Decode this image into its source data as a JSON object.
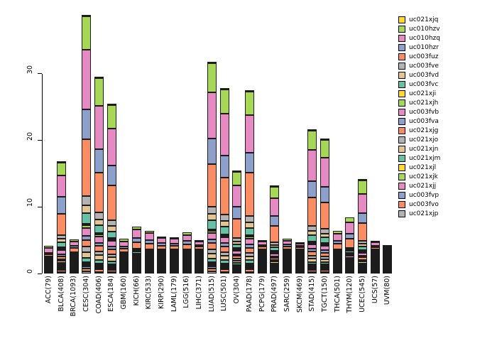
{
  "figure": {
    "background": "#ffffff"
  },
  "chart_data": {
    "type": "bar",
    "stacked": true,
    "title": "",
    "xlabel": "",
    "ylabel": "",
    "ylim": [
      0,
      40
    ],
    "yticks": [
      0,
      10,
      20,
      30
    ],
    "grid": false,
    "legend_position": "top-right",
    "categories": [
      "ACC(79)",
      "BLCA(408)",
      "BRCA(1093)",
      "CESC(304)",
      "COAD(406)",
      "ESCA(184)",
      "GBM(160)",
      "KICH(66)",
      "KIRC(533)",
      "KIRP(290)",
      "LAML(179)",
      "LGG(516)",
      "LIHC(371)",
      "LUAD(515)",
      "LUSC(501)",
      "OV(304)",
      "PAAD(178)",
      "PCPG(179)",
      "PRAD(497)",
      "SARC(259)",
      "SKCM(469)",
      "STAD(415)",
      "TGCT(150)",
      "THCA(501)",
      "THYM(120)",
      "UCEC(545)",
      "UCS(57)",
      "UVM(80)"
    ],
    "series": [
      {
        "name": "uc021xjq",
        "color": "#FFD92F"
      },
      {
        "name": "uc010hzv",
        "color": "#A6D854"
      },
      {
        "name": "uc010hzq",
        "color": "#E78AC3"
      },
      {
        "name": "uc010hzr",
        "color": "#8DA0CB"
      },
      {
        "name": "uc003fuz",
        "color": "#FC8D62"
      },
      {
        "name": "uc003fve",
        "color": "#B3B3B3"
      },
      {
        "name": "uc003fvd",
        "color": "#E5C494"
      },
      {
        "name": "uc003fvc",
        "color": "#66C2A5"
      },
      {
        "name": "uc021xji",
        "color": "#FFD92F"
      },
      {
        "name": "uc021xjh",
        "color": "#A6D854"
      },
      {
        "name": "uc003fvb",
        "color": "#E78AC3"
      },
      {
        "name": "uc003fva",
        "color": "#8DA0CB"
      },
      {
        "name": "uc021xjg",
        "color": "#FC8D62"
      },
      {
        "name": "uc021xjo",
        "color": "#B3B3B3"
      },
      {
        "name": "uc021xjn",
        "color": "#E5C494"
      },
      {
        "name": "uc021xjm",
        "color": "#66C2A5"
      },
      {
        "name": "uc021xjl",
        "color": "#FFD92F"
      },
      {
        "name": "uc021xjk",
        "color": "#A6D854"
      },
      {
        "name": "uc021xjj",
        "color": "#E78AC3"
      },
      {
        "name": "uc003fvp",
        "color": "#8DA0CB"
      },
      {
        "name": "uc003fvo",
        "color": "#FC8D62"
      },
      {
        "name": "uc021xjp",
        "color": "#B3B3B3"
      }
    ],
    "stack_bottom_to_top": [
      "uc021xjp",
      "uc003fvo",
      "uc003fvp",
      "uc021xjj",
      "uc021xjk",
      "uc021xjl",
      "uc021xjm",
      "uc021xjn",
      "uc021xjo",
      "uc021xjg",
      "uc003fva",
      "uc003fvb",
      "uc021xjh",
      "uc021xji",
      "uc003fvc",
      "uc003fvd",
      "uc003fve",
      "uc003fuz",
      "uc010hzr",
      "uc010hzq",
      "uc010hzv",
      "uc021xjq"
    ],
    "segments_bottom_to_top": [
      [
        0.05,
        0.1,
        0.05,
        0,
        0,
        0,
        0.05,
        0.05,
        0.05,
        0.1,
        0.05,
        0.1,
        0,
        0,
        0.1,
        0.05,
        0.05,
        0.35,
        0.15,
        0.75,
        0.25,
        0
      ],
      [
        0.2,
        0.3,
        0.2,
        0.1,
        0.1,
        0.05,
        0.2,
        0.3,
        0.3,
        0.4,
        0.3,
        0.6,
        0.2,
        0.05,
        0.8,
        0.5,
        0.6,
        3.2,
        2.5,
        3.2,
        1.9,
        0.1
      ],
      [
        0.05,
        0.1,
        0.05,
        0.05,
        0.05,
        0,
        0.05,
        0.1,
        0.1,
        0.15,
        0.1,
        0.15,
        0.05,
        0,
        0.15,
        0.1,
        0.1,
        0.6,
        0.35,
        0.7,
        0.3,
        0
      ],
      [
        0.3,
        0.5,
        0.3,
        0.2,
        0.2,
        0.1,
        0.6,
        0.9,
        0.8,
        1.0,
        0.6,
        1.2,
        0.4,
        0.1,
        1.6,
        1.2,
        1.4,
        8.5,
        4.5,
        9.0,
        5.0,
        0.2
      ],
      [
        0.25,
        0.4,
        0.25,
        0.15,
        0.15,
        0.1,
        0.5,
        0.7,
        0.6,
        0.8,
        0.5,
        0.9,
        0.3,
        0.1,
        1.2,
        0.9,
        1.0,
        6.0,
        3.5,
        6.5,
        4.2,
        0.2
      ],
      [
        0.2,
        0.35,
        0.2,
        0.15,
        0.15,
        0.1,
        0.4,
        0.6,
        0.5,
        0.7,
        0.45,
        0.8,
        0.25,
        0.1,
        1.0,
        0.8,
        0.9,
        5.2,
        3.0,
        5.5,
        3.6,
        0.2
      ],
      [
        0.05,
        0.1,
        0.05,
        0.05,
        0.05,
        0,
        0.1,
        0.1,
        0.1,
        0.15,
        0.1,
        0.15,
        0.05,
        0,
        0.15,
        0.1,
        0.15,
        0.55,
        0.35,
        0.75,
        0.35,
        0
      ],
      [
        0.1,
        0.15,
        0.1,
        0.05,
        0.05,
        0.05,
        0.1,
        0.15,
        0.15,
        0.2,
        0.15,
        0.25,
        0.1,
        0.05,
        0.25,
        0.15,
        0.2,
        1.0,
        0.6,
        1.3,
        0.45,
        0
      ],
      [
        0.1,
        0.12,
        0.08,
        0.05,
        0.05,
        0.05,
        0.1,
        0.12,
        0.12,
        0.18,
        0.12,
        0.2,
        0.08,
        0.05,
        0.2,
        0.12,
        0.15,
        0.85,
        0.5,
        1.1,
        0.36,
        0
      ],
      [
        0.07,
        0.08,
        0.05,
        0.03,
        0.03,
        0.03,
        0.07,
        0.08,
        0.08,
        0.12,
        0.08,
        0.14,
        0.05,
        0.03,
        0.14,
        0.08,
        0.1,
        0.58,
        0.34,
        0.75,
        0.27,
        0
      ],
      [
        0.06,
        0.08,
        0.05,
        0.03,
        0.03,
        0.02,
        0.06,
        0.08,
        0.08,
        0.1,
        0.08,
        0.12,
        0.05,
        0.02,
        0.12,
        0.08,
        0.1,
        0.55,
        0.32,
        0.7,
        0.27,
        0
      ],
      [
        0.08,
        0.1,
        0.07,
        0.05,
        0.05,
        0.03,
        0.08,
        0.1,
        0.1,
        0.15,
        0.1,
        0.18,
        0.07,
        0.03,
        0.18,
        0.1,
        0.13,
        0.78,
        0.45,
        0.95,
        0.42,
        0
      ],
      [
        0.05,
        0.08,
        0.05,
        0.02,
        0.02,
        0.02,
        0.05,
        0.06,
        0.06,
        0.1,
        0.06,
        0.1,
        0.04,
        0.02,
        0.1,
        0.06,
        0.08,
        0.42,
        0.25,
        0.55,
        0.21,
        0
      ],
      [
        0.3,
        0.45,
        0.3,
        0.2,
        0.2,
        0.1,
        0.55,
        0.75,
        0.65,
        0.9,
        0.55,
        1.0,
        0.35,
        0.1,
        1.3,
        1.0,
        1.1,
        6.4,
        3.8,
        7.0,
        4.3,
        0.25
      ],
      [
        0.25,
        0.4,
        0.25,
        0.18,
        0.18,
        0.1,
        0.5,
        0.65,
        0.55,
        0.8,
        0.5,
        0.85,
        0.3,
        0.1,
        1.15,
        0.85,
        0.95,
        5.6,
        3.3,
        6.2,
        3.7,
        0.2
      ],
      [
        0.15,
        0.25,
        0.15,
        0.1,
        0.1,
        0.05,
        0.25,
        0.35,
        0.3,
        0.4,
        0.25,
        0.5,
        0.18,
        0.05,
        0.6,
        0.45,
        0.5,
        2.9,
        1.75,
        3.2,
        2.05,
        0.1
      ],
      [
        0.25,
        0.4,
        0.25,
        0.15,
        0.15,
        0.1,
        0.45,
        0.6,
        0.55,
        0.75,
        0.5,
        0.85,
        0.3,
        0.1,
        1.1,
        0.85,
        0.95,
        6.5,
        3.0,
        5.6,
        3.6,
        0.2
      ],
      [
        0.05,
        0.08,
        0.05,
        0.02,
        0.02,
        0.02,
        0.05,
        0.06,
        0.06,
        0.1,
        0.06,
        0.1,
        0.04,
        0.02,
        0.1,
        0.06,
        0.08,
        0.42,
        0.25,
        0.55,
        0.21,
        0
      ],
      [
        0.12,
        0.2,
        0.12,
        0.08,
        0.08,
        0.05,
        0.2,
        0.3,
        0.25,
        0.35,
        0.22,
        0.4,
        0.15,
        0.05,
        0.5,
        0.38,
        0.42,
        2.45,
        1.45,
        2.7,
        1.7,
        0.08
      ],
      [
        0.05,
        0.08,
        0.05,
        0.03,
        0.03,
        0.02,
        0.05,
        0.07,
        0.07,
        0.1,
        0.07,
        0.11,
        0.04,
        0.02,
        0.11,
        0.07,
        0.09,
        0.46,
        0.27,
        0.6,
        0.26,
        0
      ],
      [
        0.03,
        0.05,
        0.03,
        0.02,
        0.02,
        0.01,
        0.03,
        0.04,
        0.04,
        0.06,
        0.04,
        0.07,
        0.03,
        0.01,
        0.07,
        0.05,
        0.06,
        0.28,
        0.17,
        0.37,
        0.14,
        0
      ],
      [
        0.2,
        0.3,
        0.2,
        0.12,
        0.12,
        0.08,
        0.38,
        0.5,
        0.45,
        0.6,
        0.4,
        0.68,
        0.24,
        0.08,
        0.88,
        0.66,
        0.74,
        4.3,
        2.5,
        4.7,
        2.85,
        0.12
      ],
      [
        0.18,
        0.28,
        0.18,
        0.12,
        0.12,
        0.07,
        0.35,
        0.46,
        0.42,
        0.56,
        0.38,
        0.63,
        0.22,
        0.07,
        0.82,
        0.6,
        0.68,
        4.0,
        2.35,
        4.4,
        2.6,
        0.12
      ],
      [
        0.09,
        0.12,
        0.08,
        0.05,
        0.05,
        0.04,
        0.09,
        0.11,
        0.11,
        0.16,
        0.11,
        0.19,
        0.07,
        0.04,
        0.19,
        0.11,
        0.14,
        0.83,
        0.48,
        1.0,
        0.44,
        0
      ],
      [
        0.12,
        0.16,
        0.1,
        0.07,
        0.07,
        0.05,
        0.13,
        0.17,
        0.17,
        0.25,
        0.17,
        0.3,
        0.11,
        0.05,
        0.3,
        0.19,
        0.24,
        1.35,
        0.8,
        1.65,
        0.75,
        0
      ],
      [
        0.13,
        0.2,
        0.13,
        0.08,
        0.08,
        0.05,
        0.22,
        0.3,
        0.27,
        0.37,
        0.25,
        0.42,
        0.15,
        0.05,
        0.55,
        0.4,
        0.45,
        2.6,
        1.55,
        2.9,
        2.0,
        0.08
      ],
      [
        0.04,
        0.06,
        0.04,
        0.02,
        0.02,
        0.02,
        0.04,
        0.05,
        0.05,
        0.08,
        0.05,
        0.09,
        0.03,
        0.02,
        0.09,
        0.05,
        0.07,
        0.36,
        0.21,
        0.45,
        0.16,
        0
      ],
      [
        0.01,
        0.02,
        0.01,
        0.01,
        0.01,
        0,
        0.01,
        0.02,
        0.02,
        0.03,
        0.02,
        0.03,
        0.01,
        0.01,
        0.03,
        0.02,
        0.02,
        0.11,
        0.06,
        0.14,
        0.04,
        0
      ]
    ]
  }
}
